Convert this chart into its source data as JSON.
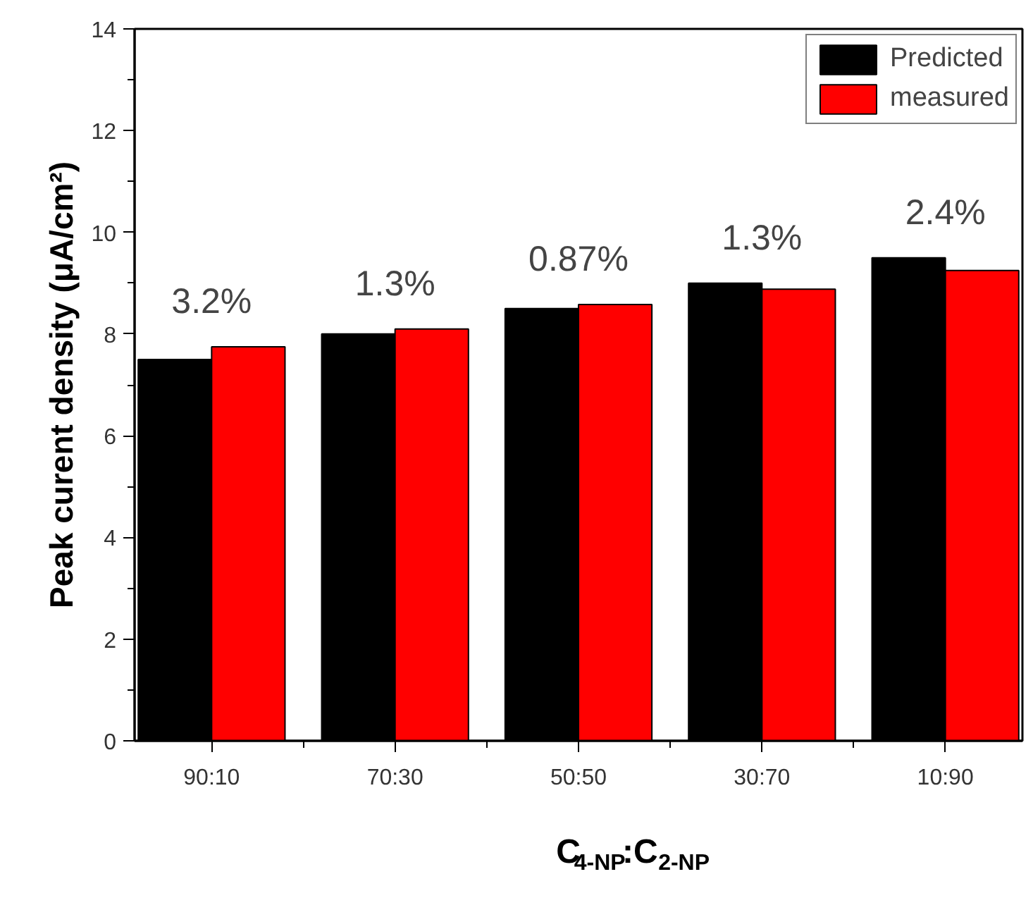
{
  "chart_data": {
    "type": "bar",
    "xlabel": "C$_{4-NP}$:C$_{2-NP}$",
    "ylabel": "Peak curent density (μA/cm²)",
    "categories": [
      "90:10",
      "70:30",
      "50:50",
      "30:70",
      "10:90"
    ],
    "series": [
      {
        "name": "Predicted",
        "color": "#000000",
        "values": [
          7.5,
          8.0,
          8.5,
          9.0,
          9.5
        ]
      },
      {
        "name": "measured",
        "color": "#ff0000",
        "values": [
          7.75,
          8.1,
          8.58,
          8.88,
          9.25
        ]
      }
    ],
    "ylim": [
      0,
      14
    ],
    "yticks": [
      0,
      2,
      4,
      6,
      8,
      10,
      12,
      14
    ],
    "annotations": [
      "3.2%",
      "1.3%",
      "0.87%",
      "1.3%",
      "2.4%"
    ],
    "legend": "top right",
    "grid": false
  }
}
